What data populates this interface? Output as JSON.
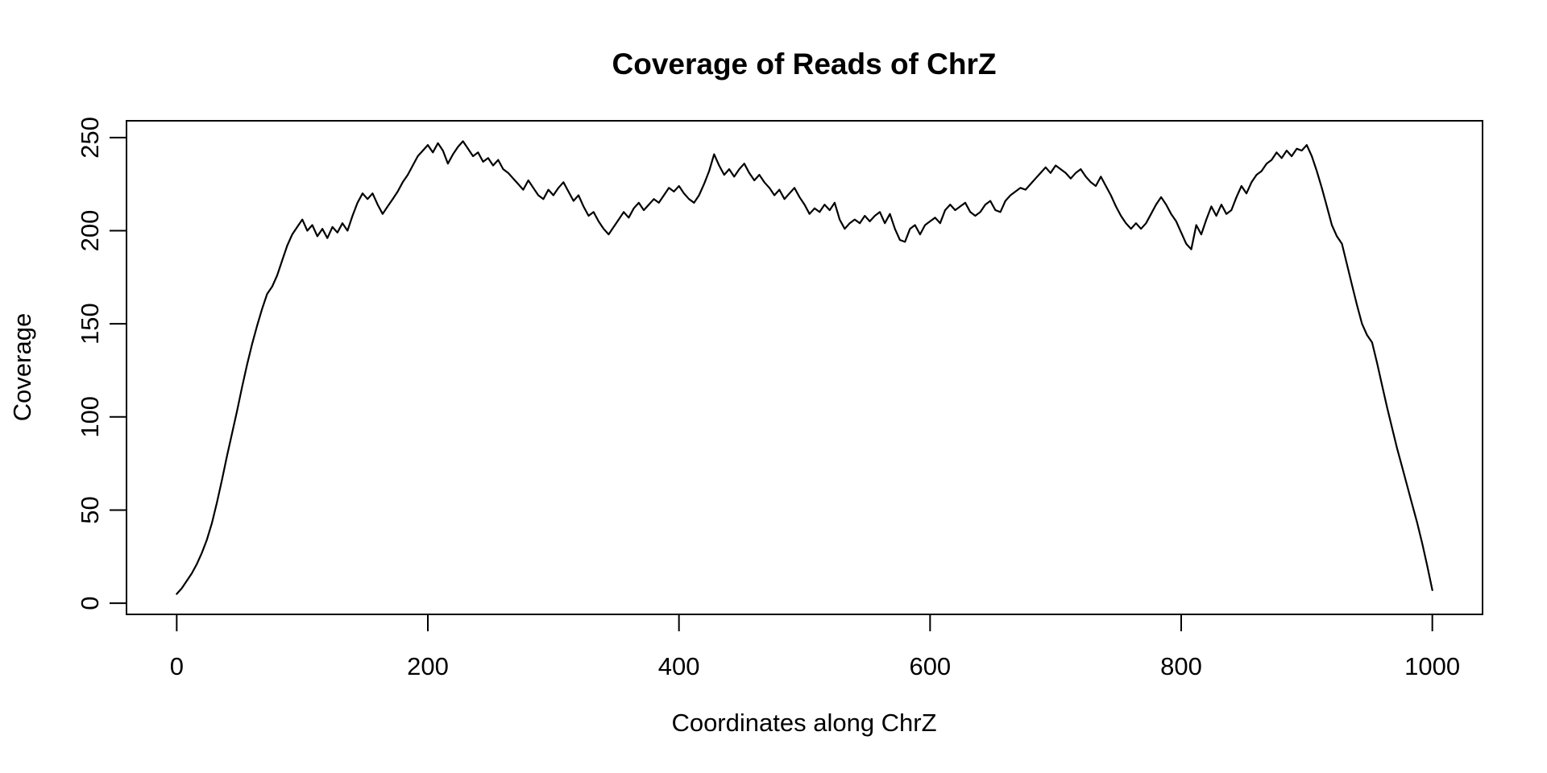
{
  "figure": {
    "background_color": "#ffffff",
    "foreground_color": "#000000"
  },
  "chart_data": {
    "type": "line",
    "title": "Coverage of Reads of ChrZ",
    "xlabel": "Coordinates along ChrZ",
    "ylabel": "Coverage",
    "x_ticks": [
      0,
      200,
      400,
      600,
      800,
      1000
    ],
    "y_ticks": [
      0,
      50,
      100,
      150,
      200,
      250
    ],
    "xlim": [
      -40,
      1040
    ],
    "ylim": [
      -6,
      259
    ],
    "grid": false,
    "legend_position": "none",
    "line_color": "#000000",
    "series": [
      {
        "name": "coverage",
        "x_start": 0,
        "x_step": 4,
        "values": [
          5,
          8,
          12,
          16,
          21,
          27,
          34,
          43,
          54,
          66,
          79,
          91,
          103,
          116,
          128,
          139,
          149,
          158,
          166,
          170,
          176,
          184,
          192,
          198,
          202,
          206,
          200,
          203,
          197,
          201,
          196,
          202,
          199,
          204,
          200,
          208,
          215,
          220,
          217,
          220,
          214,
          209,
          213,
          217,
          221,
          226,
          230,
          235,
          240,
          243,
          246,
          242,
          247,
          243,
          236,
          241,
          245,
          248,
          244,
          240,
          242,
          237,
          239,
          235,
          238,
          233,
          231,
          228,
          225,
          222,
          227,
          223,
          219,
          217,
          222,
          219,
          223,
          226,
          221,
          216,
          219,
          213,
          208,
          210,
          205,
          201,
          198,
          202,
          206,
          210,
          207,
          212,
          215,
          211,
          214,
          217,
          215,
          219,
          223,
          221,
          224,
          220,
          217,
          215,
          219,
          225,
          232,
          241,
          235,
          230,
          233,
          229,
          233,
          236,
          231,
          227,
          230,
          226,
          223,
          219,
          222,
          217,
          220,
          223,
          218,
          214,
          209,
          212,
          210,
          214,
          211,
          215,
          206,
          201,
          204,
          206,
          204,
          208,
          205,
          208,
          210,
          204,
          209,
          201,
          195,
          194,
          201,
          203,
          198,
          203,
          205,
          207,
          204,
          211,
          214,
          211,
          213,
          215,
          210,
          208,
          210,
          214,
          216,
          211,
          210,
          216,
          219,
          221,
          223,
          222,
          225,
          228,
          231,
          234,
          231,
          235,
          233,
          231,
          228,
          231,
          233,
          229,
          226,
          224,
          229,
          224,
          219,
          213,
          208,
          204,
          201,
          204,
          201,
          204,
          209,
          214,
          218,
          214,
          209,
          205,
          199,
          193,
          190,
          203,
          198,
          206,
          213,
          208,
          214,
          209,
          211,
          218,
          224,
          220,
          226,
          230,
          232,
          236,
          238,
          242,
          239,
          243,
          240,
          244,
          243,
          246,
          240,
          232,
          223,
          213,
          203,
          197,
          193,
          182,
          171,
          160,
          150,
          144,
          140,
          129,
          117,
          105,
          94,
          83,
          73,
          63,
          53,
          43,
          32,
          20,
          7
        ]
      }
    ]
  }
}
